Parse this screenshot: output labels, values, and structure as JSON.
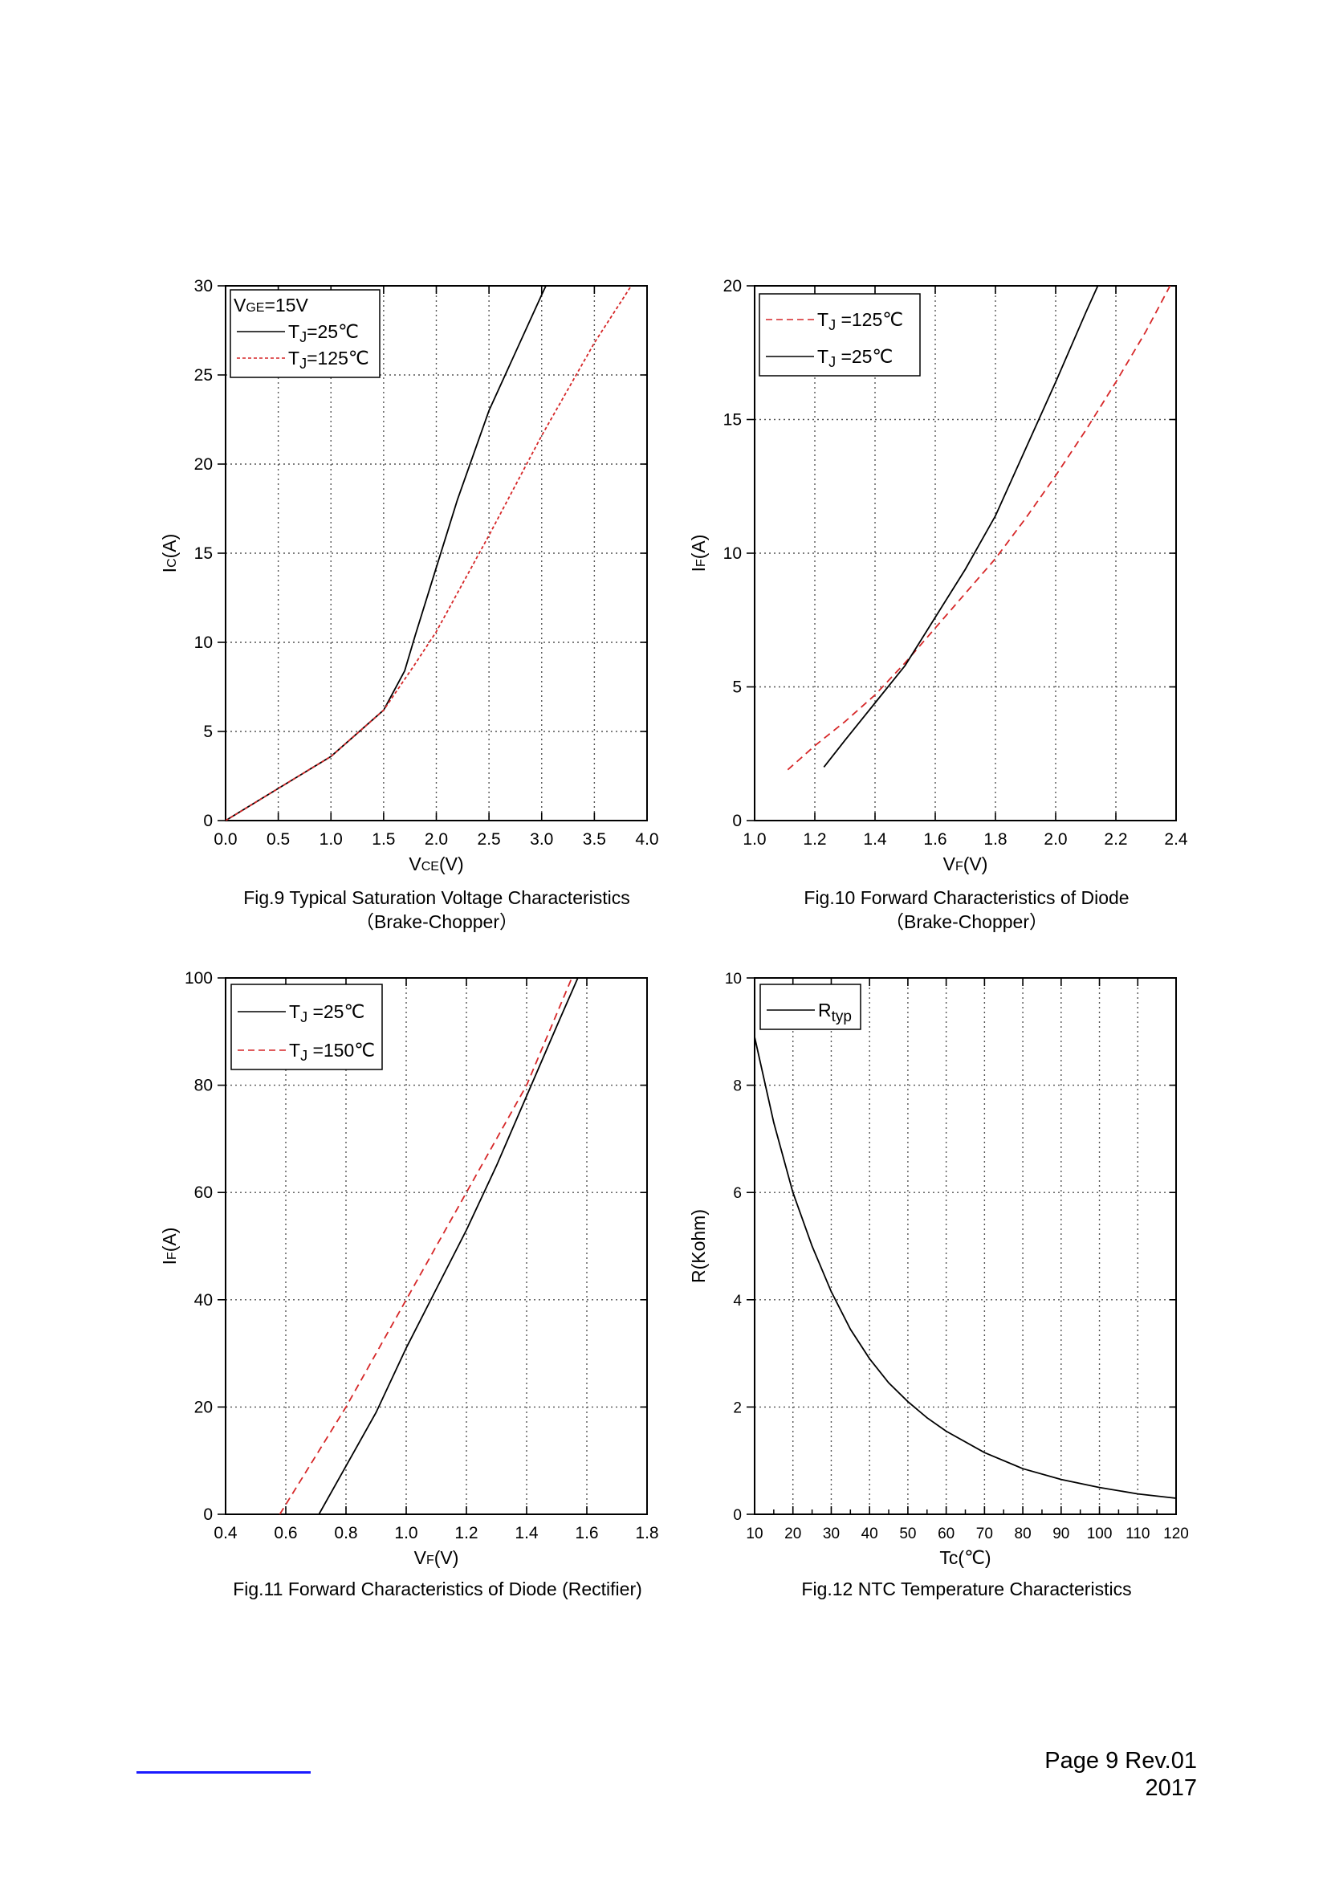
{
  "chart_data": [
    {
      "id": "fig9",
      "type": "line",
      "title": "Fig.9 Typical Saturation Voltage Characteristics",
      "subtitle": "（Brake-Chopper）",
      "xlabel": "VCE(V)",
      "ylabel": "IC(A)",
      "xlim": [
        0,
        4
      ],
      "ylim": [
        0,
        30
      ],
      "xticks": [
        "0.0",
        "0.5",
        "1.0",
        "1.5",
        "2.0",
        "2.5",
        "3.0",
        "3.5",
        "4.0"
      ],
      "yticks": [
        "0",
        "5",
        "10",
        "15",
        "20",
        "25",
        "30"
      ],
      "legend_header": "VGE=15V",
      "grid": true,
      "legend_position": "top-left",
      "series": [
        {
          "name": "TJ=25℃",
          "color": "#000000",
          "style": "solid",
          "x": [
            0,
            0.5,
            1.0,
            1.5,
            1.7,
            1.8,
            2.0,
            2.2,
            2.5,
            3.0,
            3.04
          ],
          "y": [
            0,
            1.8,
            3.6,
            6.2,
            8.4,
            10.4,
            14.2,
            18.0,
            23.0,
            29.5,
            30
          ]
        },
        {
          "name": "TJ=125℃",
          "color": "#d62728",
          "style": "dashed",
          "x": [
            0,
            0.5,
            1.0,
            1.5,
            1.8,
            2.0,
            2.5,
            3.0,
            3.5,
            3.85
          ],
          "y": [
            0,
            1.8,
            3.6,
            6.2,
            8.8,
            10.6,
            16.0,
            21.6,
            26.8,
            30
          ]
        }
      ]
    },
    {
      "id": "fig10",
      "type": "line",
      "title": "Fig.10 Forward Characteristics of Diode",
      "subtitle": "（Brake-Chopper）",
      "xlabel": "VF(V)",
      "ylabel": "IF(A)",
      "xlim": [
        1.0,
        2.4
      ],
      "ylim": [
        0,
        20
      ],
      "xticks": [
        "1.0",
        "1.2",
        "1.4",
        "1.6",
        "1.8",
        "2.0",
        "2.2",
        "2.4"
      ],
      "yticks": [
        "0",
        "5",
        "10",
        "15",
        "20"
      ],
      "grid": true,
      "legend_position": "top-left",
      "series": [
        {
          "name": "TJ =125℃",
          "color": "#d62728",
          "style": "dashed",
          "x": [
            1.11,
            1.2,
            1.3,
            1.4,
            1.5,
            1.6,
            1.7,
            1.8,
            1.9,
            2.0,
            2.1,
            2.2,
            2.3,
            2.38
          ],
          "y": [
            1.9,
            2.8,
            3.7,
            4.7,
            5.9,
            7.2,
            8.5,
            9.8,
            11.3,
            12.9,
            14.6,
            16.4,
            18.3,
            20
          ]
        },
        {
          "name": "TJ =25℃",
          "color": "#000000",
          "style": "solid",
          "x": [
            1.23,
            1.3,
            1.4,
            1.5,
            1.6,
            1.7,
            1.8,
            1.9,
            2.0,
            2.1,
            2.14
          ],
          "y": [
            2.0,
            3.0,
            4.4,
            5.8,
            7.6,
            9.4,
            11.4,
            13.9,
            16.4,
            19.0,
            20
          ]
        }
      ]
    },
    {
      "id": "fig11",
      "type": "line",
      "title": "Fig.11 Forward Characteristics of Diode (Rectifier)",
      "xlabel": "VF(V)",
      "ylabel": "IF(A)",
      "xlim": [
        0.4,
        1.8
      ],
      "ylim": [
        0,
        100
      ],
      "xticks": [
        "0.4",
        "0.6",
        "0.8",
        "1.0",
        "1.2",
        "1.4",
        "1.6",
        "1.8"
      ],
      "yticks": [
        "0",
        "20",
        "40",
        "60",
        "80",
        "100"
      ],
      "grid": true,
      "legend_position": "top-left",
      "series": [
        {
          "name": "TJ =25℃",
          "color": "#000000",
          "style": "solid",
          "x": [
            0.71,
            0.8,
            0.9,
            1.0,
            1.1,
            1.2,
            1.3,
            1.4,
            1.5,
            1.57
          ],
          "y": [
            0,
            9,
            19,
            31,
            42,
            53,
            65,
            78,
            91,
            100
          ]
        },
        {
          "name": "TJ =150℃",
          "color": "#d62728",
          "style": "dashed",
          "x": [
            0.58,
            0.8,
            1.0,
            1.2,
            1.4,
            1.55
          ],
          "y": [
            0,
            20,
            40,
            60,
            80,
            100
          ]
        }
      ]
    },
    {
      "id": "fig12",
      "type": "line",
      "title": "Fig.12 NTC Temperature Characteristics",
      "xlabel": "Tc(℃)",
      "ylabel": "R(Kohm)",
      "xlim": [
        10,
        120
      ],
      "ylim": [
        0,
        10
      ],
      "xticks": [
        "10",
        "20",
        "30",
        "40",
        "50",
        "60",
        "70",
        "80",
        "90",
        "100",
        "110",
        "120"
      ],
      "yticks": [
        "0",
        "2",
        "4",
        "6",
        "8",
        "10"
      ],
      "grid": true,
      "legend_position": "top-left",
      "series": [
        {
          "name": "Rtyp",
          "color": "#000000",
          "style": "solid",
          "x": [
            10,
            15,
            20,
            25,
            30,
            35,
            40,
            45,
            50,
            55,
            60,
            70,
            80,
            90,
            100,
            110,
            120
          ],
          "y": [
            8.9,
            7.3,
            6.0,
            5.0,
            4.15,
            3.45,
            2.9,
            2.45,
            2.1,
            1.8,
            1.55,
            1.15,
            0.85,
            0.65,
            0.5,
            0.38,
            0.3
          ]
        }
      ]
    }
  ],
  "footer": {
    "page": "Page 9  Rev.01",
    "year": "2017"
  }
}
